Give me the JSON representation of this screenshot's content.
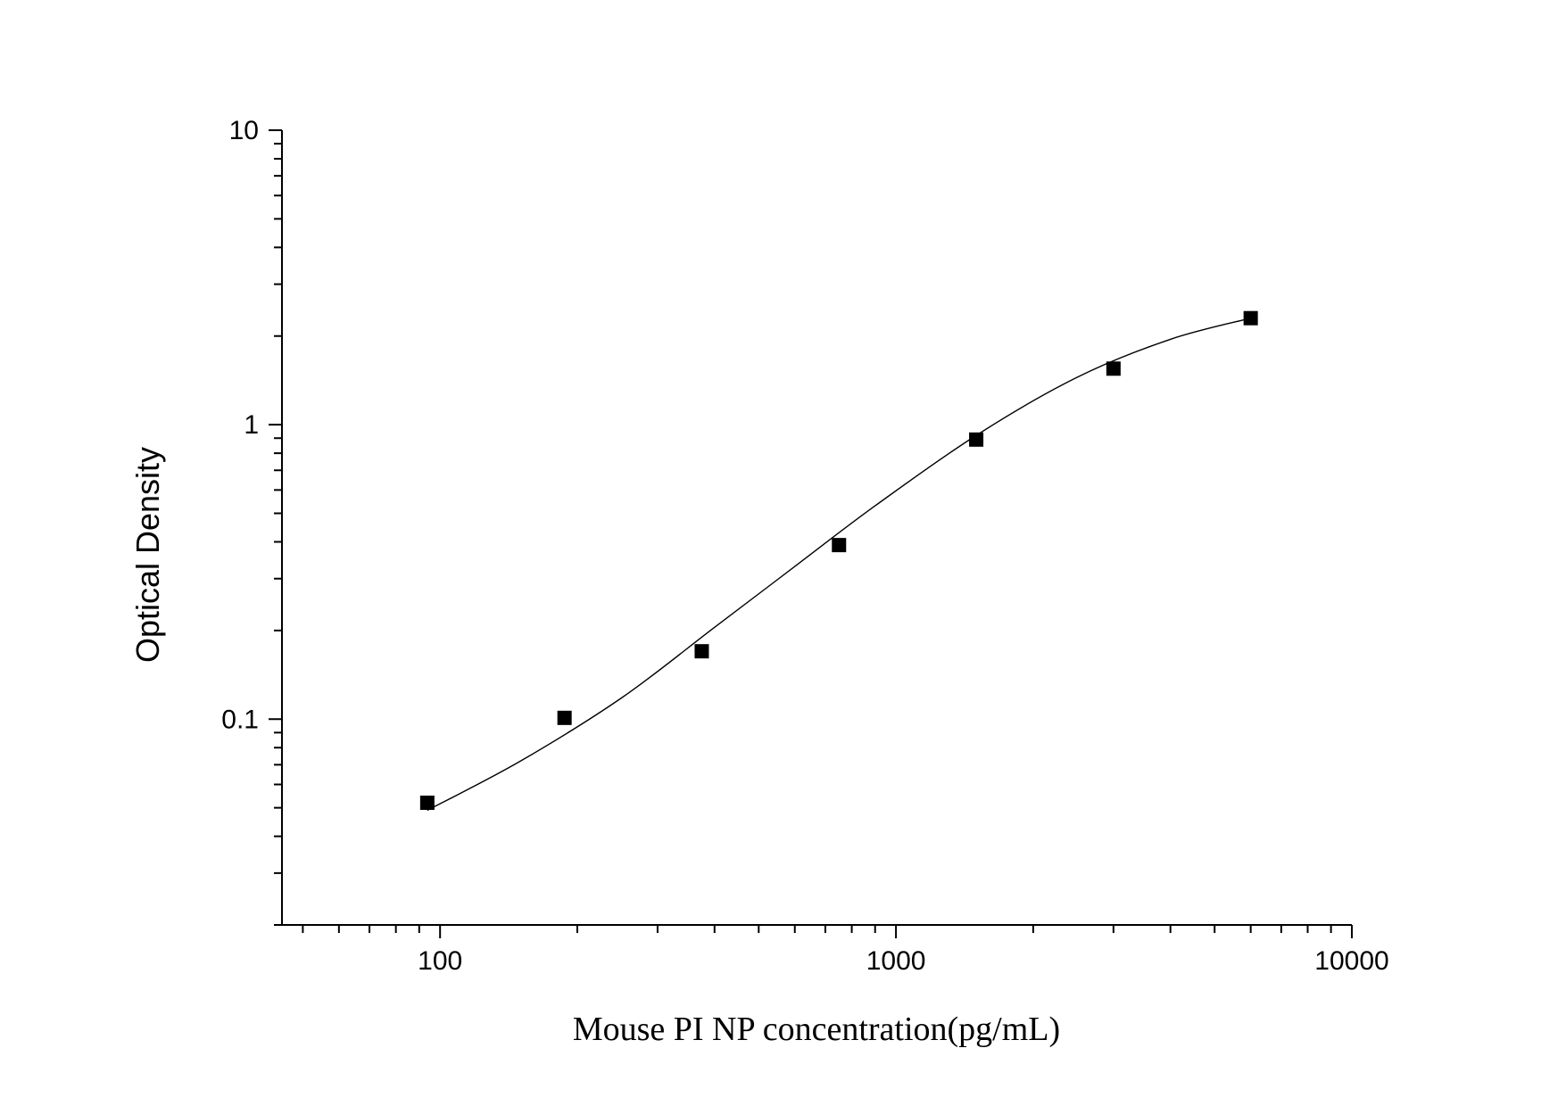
{
  "chart_data": {
    "type": "scatter",
    "title": "",
    "xlabel": "Mouse PI   NP concentration(pg/mL)",
    "ylabel": "Optical Density",
    "xscale": "log",
    "yscale": "log",
    "xlim": [
      45,
      10000
    ],
    "ylim": [
      0.02,
      10
    ],
    "x_ticks": [
      100,
      1000,
      10000
    ],
    "x_tick_labels": [
      "100",
      "1000",
      "10000"
    ],
    "y_ticks": [
      0.1,
      1,
      10
    ],
    "y_tick_labels": [
      "0.1",
      "1",
      "10"
    ],
    "grid": false,
    "legend": "none",
    "marker": "square",
    "series": [
      {
        "x": [
          93.75,
          187.5,
          375,
          750,
          1500,
          3000,
          6000
        ],
        "y": [
          0.052,
          0.101,
          0.17,
          0.39,
          0.89,
          1.55,
          2.3
        ]
      }
    ],
    "fit_curve": {
      "x": [
        93.75,
        150,
        250,
        400,
        600,
        900,
        1500,
        2500,
        4000,
        6000
      ],
      "y": [
        0.049,
        0.072,
        0.118,
        0.205,
        0.33,
        0.53,
        0.92,
        1.45,
        1.95,
        2.3
      ]
    }
  }
}
